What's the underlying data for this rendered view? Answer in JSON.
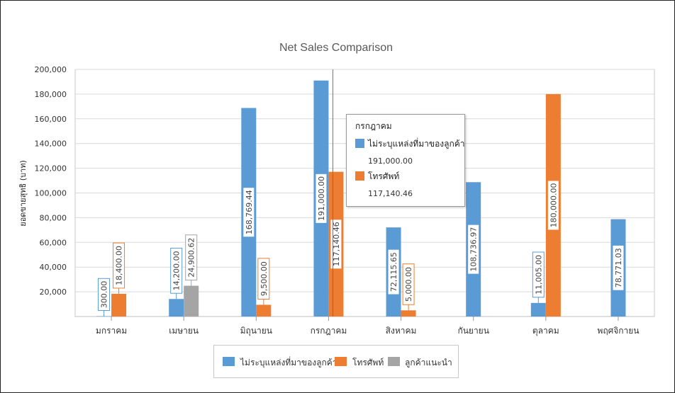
{
  "chart_data": {
    "type": "bar",
    "title": "Net Sales Comparison",
    "ylabel": "ยอดขายสุทธิ (บาท)",
    "xlabel": "",
    "ylim": [
      0,
      200000
    ],
    "yticks": [
      "20,000",
      "40,000",
      "60,000",
      "80,000",
      "100,000",
      "120,000",
      "140,000",
      "160,000",
      "180,000",
      "200,000"
    ],
    "categories": [
      "มกราคม",
      "เมษายน",
      "มิถุนายน",
      "กรกฎาคม",
      "สิงหาคม",
      "กันยายน",
      "ตุลาคม",
      "พฤศจิกายน"
    ],
    "series": [
      {
        "name": "ไม่ระบุแหล่งที่มาของลูกค้า",
        "color": "#5b9bd5",
        "values": [
          300,
          14200,
          168769.44,
          191000,
          72115.65,
          108736.97,
          11005,
          78771.03
        ],
        "labels": [
          "300.00",
          "14,200.00",
          "168,769.44",
          "191,000.00",
          "72,115.65",
          "108,736.97",
          "11,005.00",
          "78,771.03"
        ]
      },
      {
        "name": "โทรศัพท์",
        "color": "#ed7d31",
        "values": [
          18400,
          null,
          9500,
          117140.46,
          5000,
          null,
          180000,
          null
        ],
        "labels": [
          "18,400.00",
          null,
          "9,500.00",
          "117,140.46",
          "5,000.00",
          null,
          "180,000.00",
          null
        ]
      },
      {
        "name": "ลูกค้าแนะนำ",
        "color": "#a5a5a5",
        "values": [
          null,
          24900.62,
          null,
          null,
          null,
          null,
          null,
          null
        ],
        "labels": [
          null,
          "24,900.62",
          null,
          null,
          null,
          null,
          null,
          null
        ]
      }
    ],
    "grid": true,
    "legend_position": "bottom",
    "tooltip": {
      "title": "กรกฎาคม",
      "items": [
        {
          "name": "ไม่ระบุแหล่งที่มาของลูกค้า",
          "value": "191,000.00",
          "color": "#5b9bd5"
        },
        {
          "name": "โทรศัพท์",
          "value": "117,140.46",
          "color": "#ed7d31"
        }
      ]
    },
    "crosshair_category": "กรกฎาคม"
  }
}
